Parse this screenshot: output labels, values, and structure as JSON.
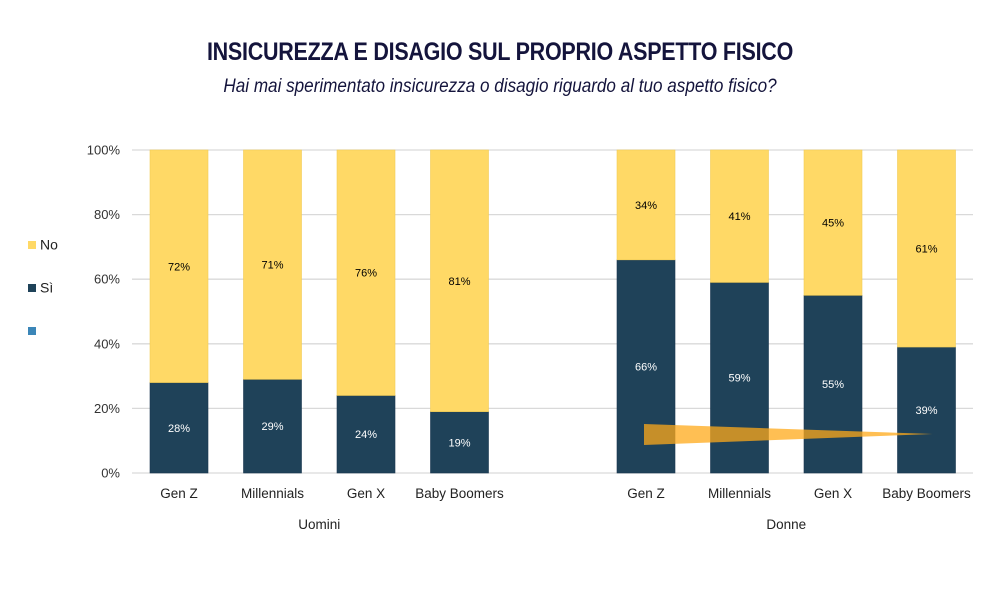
{
  "chart_data": {
    "type": "bar",
    "stacked": true,
    "normalized": true,
    "title": "INSICUREZZA E DISAGIO SUL PROPRIO ASPETTO FISICO",
    "subtitle": "Hai mai sperimentato insicurezza o disagio riguardo al tuo aspetto fisico?",
    "xlabel": "",
    "ylabel": "",
    "ylim": [
      0,
      100
    ],
    "yticks": [
      "0%",
      "20%",
      "40%",
      "60%",
      "80%",
      "100%"
    ],
    "grid": true,
    "legend_position": "left",
    "groups": [
      {
        "name": "Uomini",
        "categories": [
          "Gen Z",
          "Millennials",
          "Gen X",
          "Baby Boomers"
        ]
      },
      {
        "name": "Donne",
        "categories": [
          "Gen Z",
          "Millennials",
          "Gen X",
          "Baby Boomers"
        ]
      }
    ],
    "categories": [
      "Gen Z",
      "Millennials",
      "Gen X",
      "Baby Boomers",
      "Gen Z",
      "Millennials",
      "Gen X",
      "Baby Boomers"
    ],
    "series": [
      {
        "name": "Sì",
        "color": "#1F4259",
        "label_color": "#ffffff",
        "values": [
          28,
          29,
          24,
          19,
          66,
          59,
          55,
          39
        ],
        "labels": [
          "28%",
          "29%",
          "24%",
          "19%",
          "66%",
          "59%",
          "55%",
          "39%"
        ]
      },
      {
        "name": "No",
        "color": "#FFD966",
        "label_color": "#000000",
        "values": [
          72,
          71,
          76,
          81,
          34,
          41,
          45,
          61
        ],
        "labels": [
          "72%",
          "71%",
          "76%",
          "81%",
          "34%",
          "41%",
          "45%",
          "61%"
        ]
      }
    ],
    "legend": [
      {
        "name": "No",
        "color": "#FFD966"
      },
      {
        "name": "Sì",
        "color": "#1F4259"
      },
      {
        "name": "",
        "color": "#3B86B8"
      }
    ],
    "annotations": [
      {
        "type": "decreasing-trend-wedge",
        "group": "Donne",
        "from": "Gen Z",
        "to": "Baby Boomers",
        "color": "#FFAA1A",
        "opacity": 0.75
      }
    ]
  }
}
